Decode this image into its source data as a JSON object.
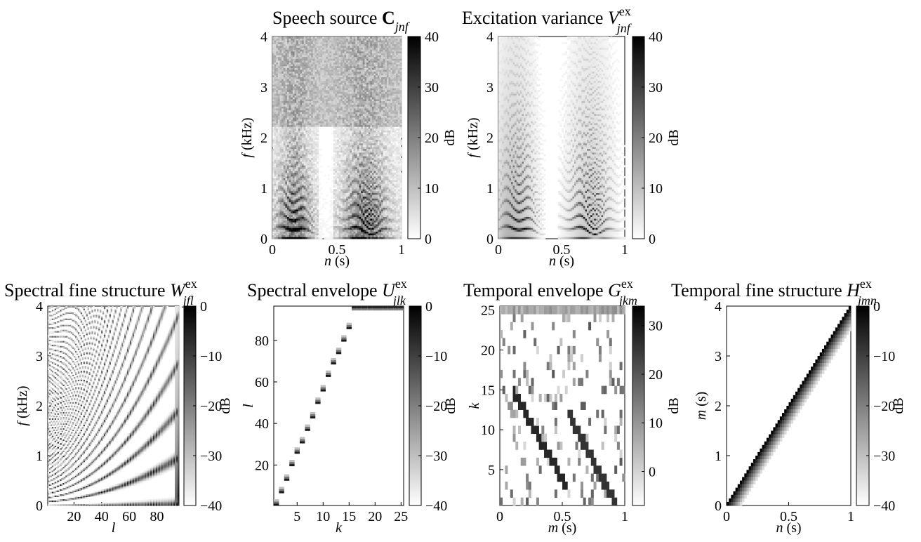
{
  "chart_data": [
    {
      "type": "heatmap",
      "title": {
        "text": "Speech source ",
        "symbol": "C",
        "symbol_style": "bold",
        "sub": "jnf",
        "sup": ""
      },
      "xlabel": {
        "var": "n",
        "unit": " (s)"
      },
      "ylabel": {
        "var": "f",
        "unit": " (kHz)"
      },
      "xlim": [
        0,
        1
      ],
      "ylim": [
        0,
        4
      ],
      "xticks": [
        {
          "v": 0,
          "label": "0"
        },
        {
          "v": 0.5,
          "label": "0.5"
        },
        {
          "v": 1,
          "label": "1"
        }
      ],
      "yticks": [
        {
          "v": 0,
          "label": "0"
        },
        {
          "v": 1,
          "label": "1"
        },
        {
          "v": 2,
          "label": "2"
        },
        {
          "v": 3,
          "label": "3"
        },
        {
          "v": 4,
          "label": "4"
        }
      ],
      "colorbar": {
        "range": [
          0,
          40
        ],
        "unit": "dB",
        "ticks": [
          {
            "v": 0,
            "label": "0"
          },
          {
            "v": 10,
            "label": "10"
          },
          {
            "v": 20,
            "label": "20"
          },
          {
            "v": 30,
            "label": "30"
          },
          {
            "v": 40,
            "label": "40"
          }
        ]
      },
      "colormap": "gray-inverted",
      "pattern": "speech"
    },
    {
      "type": "heatmap",
      "title": {
        "text": "Excitation variance ",
        "symbol": "V",
        "symbol_style": "italic",
        "sub": "jnf",
        "sup": "ex"
      },
      "xlabel": {
        "var": "n",
        "unit": " (s)"
      },
      "ylabel": {
        "var": "f",
        "unit": " (kHz)"
      },
      "xlim": [
        0,
        1
      ],
      "ylim": [
        0,
        4
      ],
      "xticks": [
        {
          "v": 0,
          "label": "0"
        },
        {
          "v": 0.5,
          "label": "0.5"
        },
        {
          "v": 1,
          "label": "1"
        }
      ],
      "yticks": [
        {
          "v": 0,
          "label": "0"
        },
        {
          "v": 1,
          "label": "1"
        },
        {
          "v": 2,
          "label": "2"
        },
        {
          "v": 3,
          "label": "3"
        },
        {
          "v": 4,
          "label": "4"
        }
      ],
      "colorbar": {
        "range": [
          0,
          40
        ],
        "unit": "dB",
        "ticks": [
          {
            "v": 0,
            "label": "0"
          },
          {
            "v": 10,
            "label": "10"
          },
          {
            "v": 20,
            "label": "20"
          },
          {
            "v": 30,
            "label": "30"
          },
          {
            "v": 40,
            "label": "40"
          }
        ]
      },
      "colormap": "gray-inverted",
      "pattern": "excitation"
    },
    {
      "type": "heatmap",
      "title": {
        "text": "Spectral fine structure ",
        "symbol": "W",
        "symbol_style": "italic",
        "sub": "jfl",
        "sup": "ex"
      },
      "xlabel": {
        "var": "l",
        "unit": ""
      },
      "ylabel": {
        "var": "f",
        "unit": " (kHz)"
      },
      "xlim": [
        1,
        96
      ],
      "ylim": [
        0,
        4
      ],
      "xticks": [
        {
          "v": 20,
          "label": "20"
        },
        {
          "v": 40,
          "label": "40"
        },
        {
          "v": 60,
          "label": "60"
        },
        {
          "v": 80,
          "label": "80"
        }
      ],
      "yticks": [
        {
          "v": 0,
          "label": "0"
        },
        {
          "v": 1,
          "label": "1"
        },
        {
          "v": 2,
          "label": "2"
        },
        {
          "v": 3,
          "label": "3"
        },
        {
          "v": 4,
          "label": "4"
        }
      ],
      "colorbar": {
        "range": [
          -40,
          0
        ],
        "unit": "dB",
        "ticks": [
          {
            "v": -40,
            "label": "−40"
          },
          {
            "v": -30,
            "label": "−30"
          },
          {
            "v": -20,
            "label": "−20"
          },
          {
            "v": -10,
            "label": "−10"
          },
          {
            "v": 0,
            "label": "0"
          }
        ]
      },
      "colormap": "gray-inverted",
      "pattern": "harmonic_grid"
    },
    {
      "type": "heatmap",
      "title": {
        "text": "Spectral envelope ",
        "symbol": "U",
        "symbol_style": "italic",
        "sub": "jlk",
        "sup": "ex"
      },
      "xlabel": {
        "var": "k",
        "unit": ""
      },
      "ylabel": {
        "var": "l",
        "unit": ""
      },
      "xlim": [
        0.5,
        25.5
      ],
      "ylim": [
        0.5,
        96.5
      ],
      "xticks": [
        {
          "v": 5,
          "label": "5"
        },
        {
          "v": 10,
          "label": "10"
        },
        {
          "v": 15,
          "label": "15"
        },
        {
          "v": 20,
          "label": "20"
        },
        {
          "v": 25,
          "label": "25"
        }
      ],
      "yticks": [
        {
          "v": 20,
          "label": "20"
        },
        {
          "v": 40,
          "label": "40"
        },
        {
          "v": 60,
          "label": "60"
        },
        {
          "v": 80,
          "label": "80"
        }
      ],
      "colorbar": {
        "range": [
          -40,
          0
        ],
        "unit": "dB",
        "ticks": [
          {
            "v": -40,
            "label": "−40"
          },
          {
            "v": -30,
            "label": "−30"
          },
          {
            "v": -20,
            "label": "−20"
          },
          {
            "v": -10,
            "label": "−10"
          },
          {
            "v": 0,
            "label": "0"
          }
        ]
      },
      "colormap": "gray-inverted",
      "pattern": "sparse_diagonal"
    },
    {
      "type": "heatmap",
      "title": {
        "text": "Temporal envelope ",
        "symbol": "G",
        "symbol_style": "italic",
        "sub": "jkm",
        "sup": "ex"
      },
      "xlabel": {
        "var": "m",
        "unit": " (s)"
      },
      "ylabel": {
        "var": "k",
        "unit": ""
      },
      "xlim": [
        0,
        1
      ],
      "ylim": [
        0.5,
        25.5
      ],
      "xticks": [
        {
          "v": 0,
          "label": "0"
        },
        {
          "v": 0.5,
          "label": "0.5"
        },
        {
          "v": 1,
          "label": "1"
        }
      ],
      "yticks": [
        {
          "v": 5,
          "label": "5"
        },
        {
          "v": 10,
          "label": "10"
        },
        {
          "v": 15,
          "label": "15"
        },
        {
          "v": 20,
          "label": "20"
        },
        {
          "v": 25,
          "label": "25"
        }
      ],
      "colorbar": {
        "range": [
          -7,
          34
        ],
        "unit": "dB",
        "ticks": [
          {
            "v": 0,
            "label": "0"
          },
          {
            "v": 10,
            "label": "10"
          },
          {
            "v": 20,
            "label": "20"
          },
          {
            "v": 30,
            "label": "30"
          }
        ]
      },
      "colormap": "gray-inverted",
      "pattern": "activations"
    },
    {
      "type": "heatmap",
      "title": {
        "text": "Temporal fine structure ",
        "symbol": "H",
        "symbol_style": "italic",
        "sub": "jmn",
        "sup": "ex"
      },
      "xlabel": {
        "var": "n",
        "unit": " (s)"
      },
      "ylabel": {
        "var": "m",
        "unit": " (s)"
      },
      "xlim": [
        0,
        1
      ],
      "ylim": [
        0,
        4
      ],
      "xticks": [
        {
          "v": 0,
          "label": "0"
        },
        {
          "v": 0.5,
          "label": "0.5"
        },
        {
          "v": 1,
          "label": "1"
        }
      ],
      "yticks": [
        {
          "v": 0,
          "label": "0"
        },
        {
          "v": 1,
          "label": "1"
        },
        {
          "v": 2,
          "label": "2"
        },
        {
          "v": 3,
          "label": "3"
        },
        {
          "v": 4,
          "label": "4"
        }
      ],
      "colorbar": {
        "range": [
          -40,
          0
        ],
        "unit": "dB",
        "ticks": [
          {
            "v": -40,
            "label": "−40"
          },
          {
            "v": -30,
            "label": "−30"
          },
          {
            "v": -20,
            "label": "−20"
          },
          {
            "v": -10,
            "label": "−10"
          },
          {
            "v": 0,
            "label": "0"
          }
        ]
      },
      "colormap": "gray-inverted",
      "pattern": "diagonal_band"
    }
  ]
}
